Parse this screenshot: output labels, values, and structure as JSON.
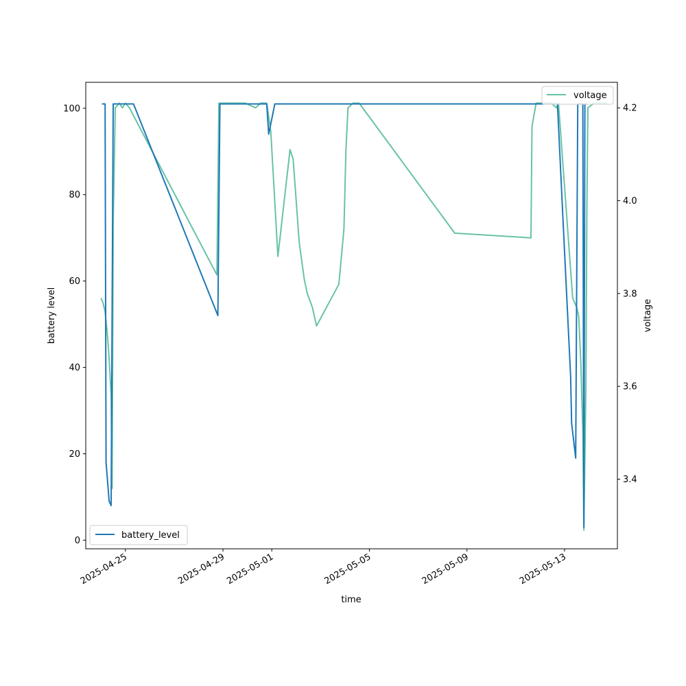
{
  "chart_data": {
    "type": "line",
    "title": "",
    "xlabel": "time",
    "ylabel_left": "battery level",
    "ylabel_right": "voltage",
    "xlim": [
      "2025-04-23T09:00",
      "2025-05-15T04:00"
    ],
    "ylim_left": [
      -2,
      106
    ],
    "ylim_right": [
      3.25,
      4.255
    ],
    "x_ticks": [
      "2025-04-25",
      "2025-04-29",
      "2025-05-01",
      "2025-05-05",
      "2025-05-09",
      "2025-05-13"
    ],
    "y_ticks_left": [
      0,
      20,
      40,
      60,
      80,
      100
    ],
    "y_ticks_right": [
      3.4,
      3.6,
      3.8,
      4.0,
      4.2
    ],
    "grid": false,
    "legend_left": {
      "position": "lower-left"
    },
    "legend_right": {
      "position": "upper-right"
    },
    "series": [
      {
        "name": "battery_level",
        "axis": "left",
        "color": "#1f77b4",
        "points": [
          [
            "2025-04-24T01:00",
            101
          ],
          [
            "2025-04-24T04:00",
            101
          ],
          [
            "2025-04-24T05:00",
            18
          ],
          [
            "2025-04-24T08:00",
            9
          ],
          [
            "2025-04-24T10:00",
            8
          ],
          [
            "2025-04-24T12:00",
            101
          ],
          [
            "2025-04-25T08:00",
            101
          ],
          [
            "2025-04-28T19:00",
            52
          ],
          [
            "2025-04-28T21:00",
            101
          ],
          [
            "2025-04-30T19:00",
            101
          ],
          [
            "2025-04-30T21:00",
            94
          ],
          [
            "2025-05-01T03:00",
            101
          ],
          [
            "2025-05-12T17:00",
            101
          ],
          [
            "2025-05-13T00:00",
            67
          ],
          [
            "2025-05-13T06:00",
            38
          ],
          [
            "2025-05-13T07:00",
            27
          ],
          [
            "2025-05-13T11:00",
            19
          ],
          [
            "2025-05-13T13:00",
            101
          ],
          [
            "2025-05-13T18:00",
            101
          ],
          [
            "2025-05-13T19:00",
            3
          ],
          [
            "2025-05-13T20:00",
            101
          ],
          [
            "2025-05-13T22:00",
            101
          ]
        ]
      },
      {
        "name": "voltage",
        "axis": "right",
        "color": "#66c2a5",
        "points": [
          [
            "2025-04-24T00:00",
            3.79
          ],
          [
            "2025-04-24T02:00",
            3.78
          ],
          [
            "2025-04-24T04:00",
            3.76
          ],
          [
            "2025-04-24T06:00",
            3.72
          ],
          [
            "2025-04-24T08:00",
            3.66
          ],
          [
            "2025-04-24T10:00",
            3.58
          ],
          [
            "2025-04-24T11:00",
            3.38
          ],
          [
            "2025-04-24T12:00",
            3.95
          ],
          [
            "2025-04-24T14:00",
            4.2
          ],
          [
            "2025-04-24T18:00",
            4.21
          ],
          [
            "2025-04-24T21:00",
            4.2
          ],
          [
            "2025-04-25T00:00",
            4.21
          ],
          [
            "2025-04-25T04:00",
            4.2
          ],
          [
            "2025-04-28T18:00",
            3.84
          ],
          [
            "2025-04-28T20:00",
            4.21
          ],
          [
            "2025-04-29T03:00",
            4.21
          ],
          [
            "2025-04-29T10:00",
            4.21
          ],
          [
            "2025-04-29T22:00",
            4.21
          ],
          [
            "2025-04-30T08:00",
            4.2
          ],
          [
            "2025-04-30T13:00",
            4.21
          ],
          [
            "2025-04-30T19:00",
            4.21
          ],
          [
            "2025-04-30T23:00",
            4.15
          ],
          [
            "2025-05-01T06:00",
            3.88
          ],
          [
            "2025-05-01T18:00",
            4.11
          ],
          [
            "2025-05-01T21:00",
            4.09
          ],
          [
            "2025-05-02T03:00",
            3.91
          ],
          [
            "2025-05-02T08:00",
            3.83
          ],
          [
            "2025-05-02T11:00",
            3.8
          ],
          [
            "2025-05-02T16:00",
            3.77
          ],
          [
            "2025-05-02T18:00",
            3.75
          ],
          [
            "2025-05-02T20:00",
            3.73
          ],
          [
            "2025-05-03T18:00",
            3.82
          ],
          [
            "2025-05-03T23:00",
            3.94
          ],
          [
            "2025-05-04T01:00",
            4.11
          ],
          [
            "2025-05-04T03:00",
            4.2
          ],
          [
            "2025-05-04T08:00",
            4.21
          ],
          [
            "2025-05-04T14:00",
            4.21
          ],
          [
            "2025-05-08T12:00",
            3.93
          ],
          [
            "2025-05-11T15:00",
            3.92
          ],
          [
            "2025-05-11T16:00",
            4.16
          ],
          [
            "2025-05-11T20:00",
            4.21
          ],
          [
            "2025-05-12T01:00",
            4.21
          ],
          [
            "2025-05-12T06:00",
            4.21
          ],
          [
            "2025-05-12T11:00",
            4.21
          ],
          [
            "2025-05-12T16:00",
            4.2
          ],
          [
            "2025-05-12T18:00",
            4.21
          ],
          [
            "2025-05-13T08:00",
            3.79
          ],
          [
            "2025-05-13T12:00",
            3.77
          ],
          [
            "2025-05-13T14:00",
            3.75
          ],
          [
            "2025-05-13T16:00",
            3.65
          ],
          [
            "2025-05-13T18:00",
            3.5
          ],
          [
            "2025-05-13T19:00",
            3.29
          ],
          [
            "2025-05-13T21:00",
            3.6
          ],
          [
            "2025-05-13T22:00",
            3.98
          ],
          [
            "2025-05-13T23:00",
            4.2
          ],
          [
            "2025-05-14T05:00",
            4.21
          ],
          [
            "2025-05-14T18:00",
            4.21
          ]
        ]
      }
    ]
  }
}
